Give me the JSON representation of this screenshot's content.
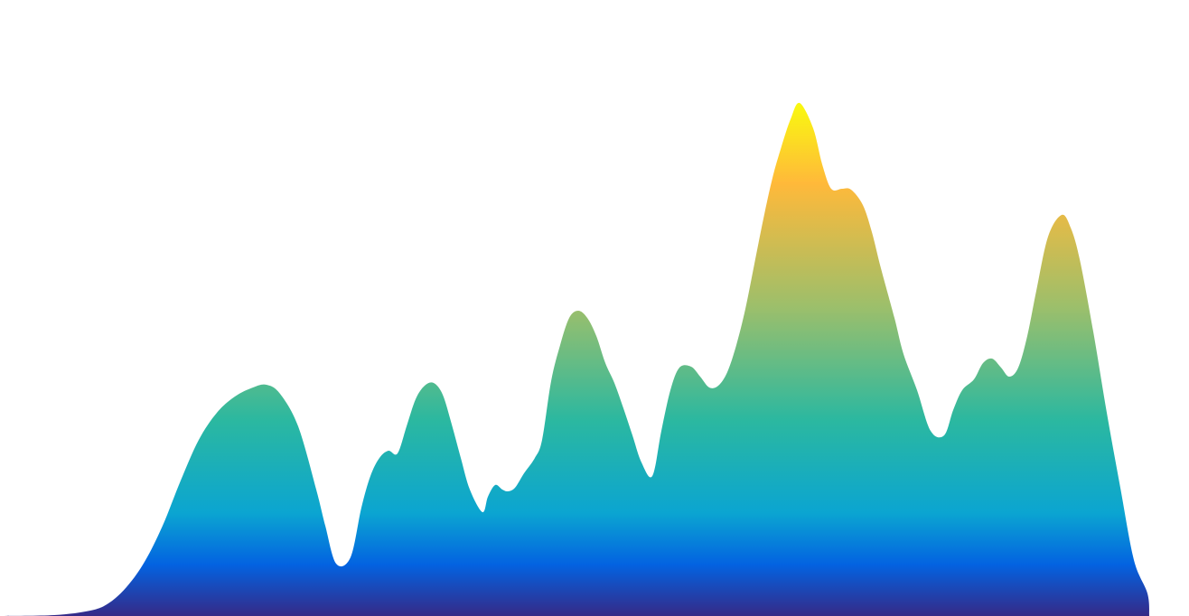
{
  "chart_data": {
    "type": "area",
    "title": "",
    "xlabel": "",
    "ylabel": "",
    "grid": false,
    "legend": "none",
    "colormap": "parula",
    "gradient_colors": [
      "#352a87",
      "#0363e1",
      "#0ba5d1",
      "#2bb8a0",
      "#9cbf6b",
      "#ffb93a",
      "#f9fb0e"
    ],
    "xlim": [
      0,
      1316
    ],
    "ylim": [
      0,
      570
    ],
    "x": [
      0,
      60,
      100,
      120,
      140,
      160,
      180,
      200,
      220,
      240,
      260,
      280,
      295,
      310,
      330,
      350,
      360,
      372,
      388,
      400,
      410,
      420,
      430,
      440,
      450,
      460,
      470,
      480,
      490,
      500,
      510,
      520,
      534,
      540,
      548,
      556,
      562,
      570,
      580,
      592,
      600,
      610,
      620,
      630,
      640,
      650,
      660,
      670,
      680,
      690,
      700,
      710,
      722,
      732,
      742,
      752,
      765,
      775,
      785,
      795,
      805,
      815,
      825,
      835,
      845,
      855,
      865,
      875,
      885,
      900,
      910,
      920,
      932,
      942,
      955,
      965,
      975,
      990,
      1000,
      1015,
      1030,
      1045,
      1055,
      1065,
      1078,
      1088,
      1098,
      1108,
      1117,
      1127,
      1137,
      1147,
      1160,
      1175,
      1185,
      1195,
      1210,
      1225,
      1240,
      1255,
      1270,
      1272
    ],
    "values": [
      0,
      1,
      6,
      14,
      32,
      60,
      100,
      150,
      195,
      225,
      243,
      253,
      256,
      246,
      210,
      140,
      100,
      58,
      65,
      120,
      155,
      175,
      183,
      180,
      210,
      240,
      255,
      258,
      245,
      212,
      175,
      140,
      115,
      132,
      145,
      140,
      138,
      142,
      158,
      175,
      195,
      260,
      300,
      330,
      338,
      330,
      310,
      280,
      258,
      230,
      200,
      170,
      155,
      205,
      250,
      275,
      276,
      265,
      253,
      255,
      270,
      300,
      340,
      390,
      440,
      485,
      520,
      550,
      568,
      540,
      500,
      473,
      473,
      472,
      455,
      425,
      385,
      330,
      290,
      250,
      205,
      200,
      228,
      250,
      262,
      280,
      285,
      275,
      265,
      275,
      310,
      360,
      420,
      444,
      430,
      395,
      315,
      225,
      142,
      62,
      25,
      0
    ]
  }
}
